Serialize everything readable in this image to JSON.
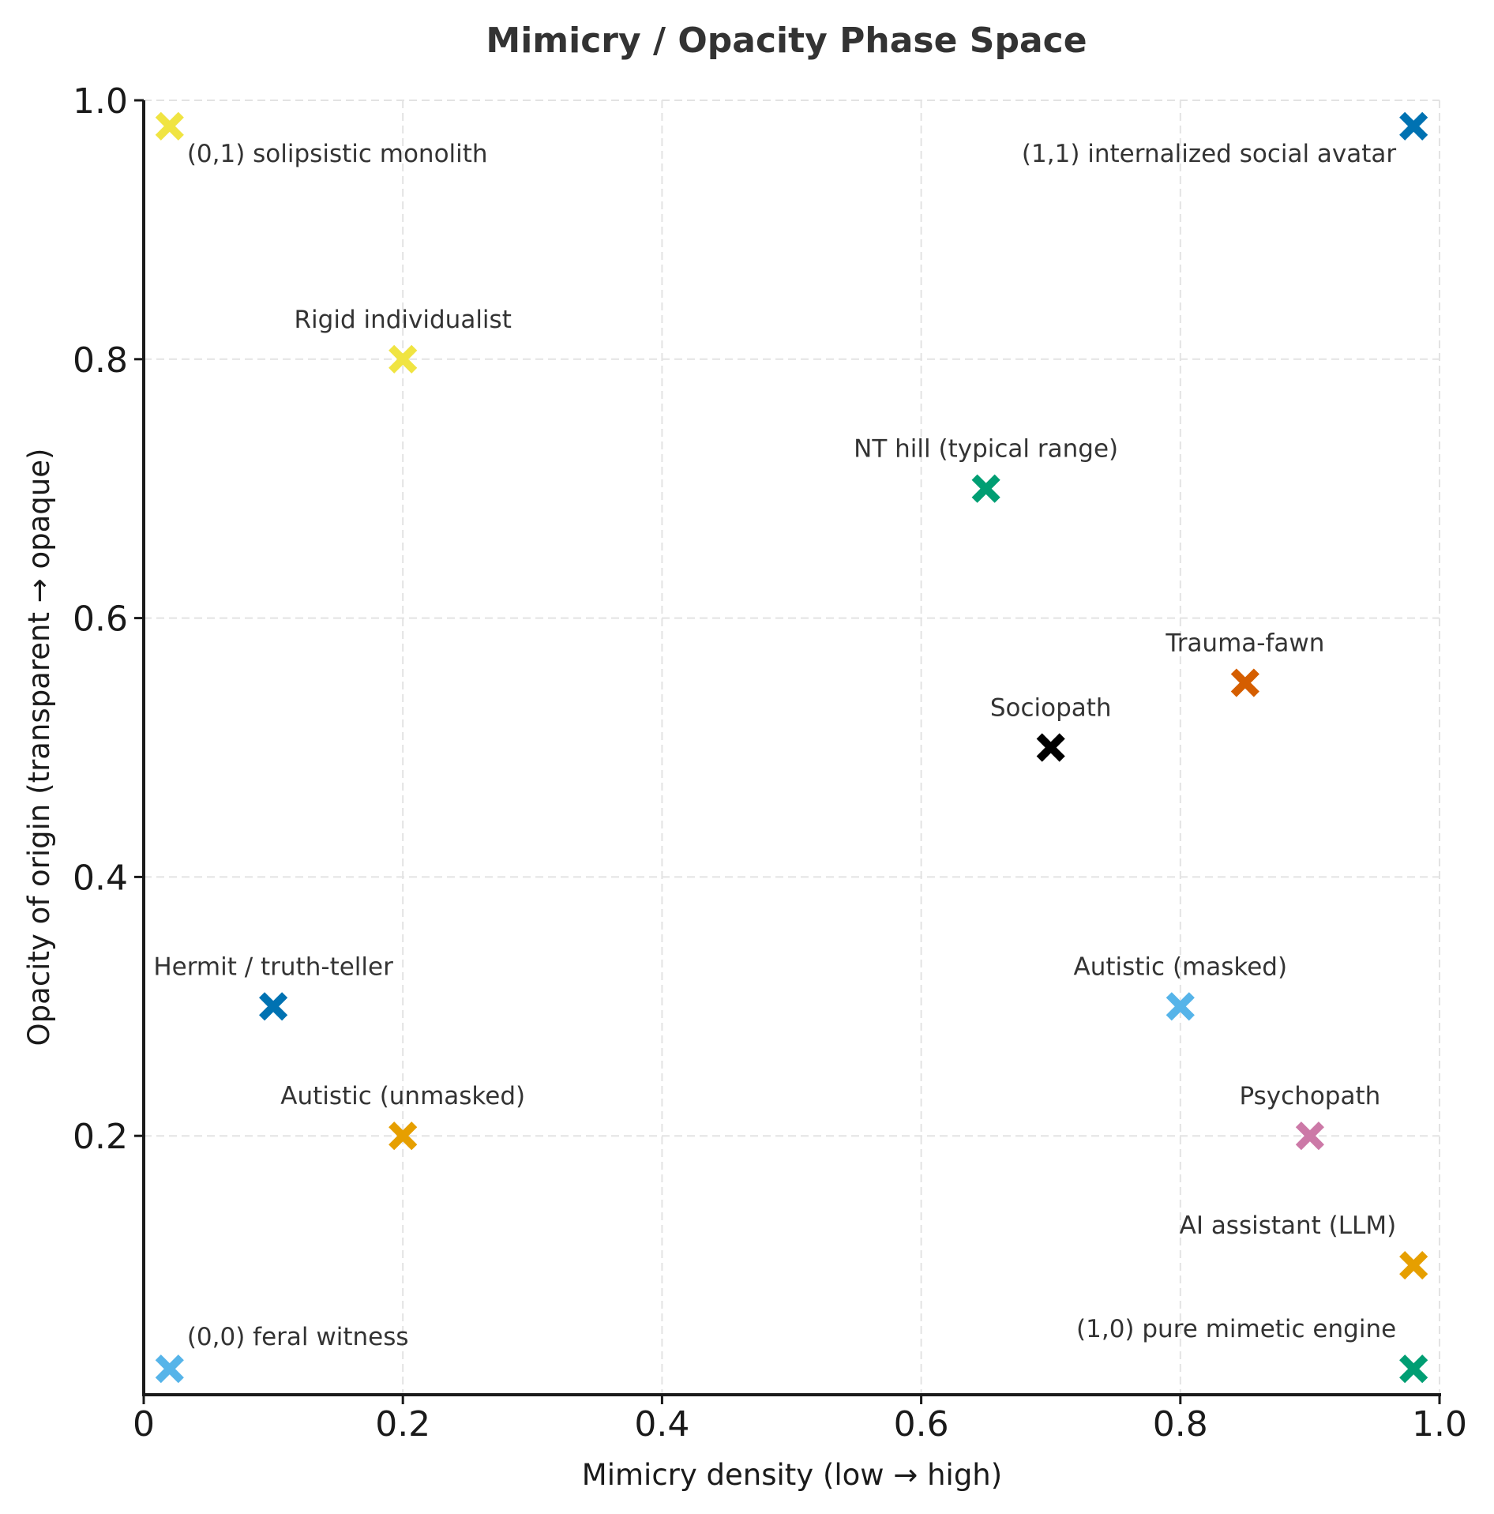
{
  "chart_data": {
    "type": "scatter",
    "title": "Mimicry / Opacity Phase Space",
    "xlabel": "Mimicry density  (low → high)",
    "ylabel": "Opacity of origin  (transparent → opaque)",
    "xlim": [
      0,
      1
    ],
    "ylim": [
      0,
      1
    ],
    "xticks": [
      "0",
      "0.2",
      "0.4",
      "0.6",
      "0.8",
      "1.0"
    ],
    "yticks": [
      "0.2",
      "0.4",
      "0.6",
      "0.8",
      "1.0"
    ],
    "grid": true,
    "marker": "X",
    "points": [
      {
        "label": "(0,1) solipsistic monolith",
        "x": 0.02,
        "y": 0.98,
        "color": "#F0E442",
        "label_position": "below-right"
      },
      {
        "label": "(1,1) internalized social avatar",
        "x": 0.98,
        "y": 0.98,
        "color": "#0072B2",
        "label_position": "below-left"
      },
      {
        "label": "Rigid individualist",
        "x": 0.2,
        "y": 0.8,
        "color": "#F0E442",
        "label_position": "above"
      },
      {
        "label": "NT hill (typical range)",
        "x": 0.65,
        "y": 0.7,
        "color": "#009E73",
        "label_position": "above"
      },
      {
        "label": "Trauma-fawn",
        "x": 0.85,
        "y": 0.55,
        "color": "#D55E00",
        "label_position": "above"
      },
      {
        "label": "Sociopath",
        "x": 0.7,
        "y": 0.5,
        "color": "#000000",
        "label_position": "above"
      },
      {
        "label": "Hermit / truth-teller",
        "x": 0.1,
        "y": 0.3,
        "color": "#0072B2",
        "label_position": "above"
      },
      {
        "label": "Autistic (masked)",
        "x": 0.8,
        "y": 0.3,
        "color": "#56B4E9",
        "label_position": "above"
      },
      {
        "label": "Autistic (unmasked)",
        "x": 0.2,
        "y": 0.2,
        "color": "#E69F00",
        "label_position": "above"
      },
      {
        "label": "Psychopath",
        "x": 0.9,
        "y": 0.2,
        "color": "#CC79A7",
        "label_position": "above"
      },
      {
        "label": "AI assistant (LLM)",
        "x": 0.98,
        "y": 0.1,
        "color": "#E69F00",
        "label_position": "above-left"
      },
      {
        "label": "(0,0) feral witness",
        "x": 0.02,
        "y": 0.02,
        "color": "#56B4E9",
        "label_position": "above-right"
      },
      {
        "label": "(1,0) pure mimetic engine",
        "x": 0.98,
        "y": 0.02,
        "color": "#009E73",
        "label_position": "above-left"
      }
    ]
  }
}
